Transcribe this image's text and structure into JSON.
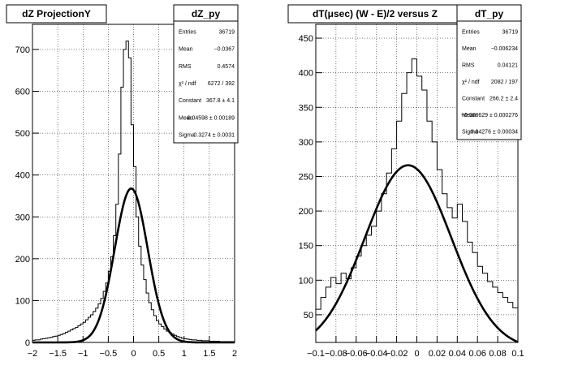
{
  "chart_data": [
    {
      "type": "histogram-with-fit",
      "title": "dZ ProjectionY",
      "xlim": [
        -2,
        2
      ],
      "ylim": [
        0,
        760
      ],
      "xticks": [
        -2,
        -1.5,
        -1,
        -0.5,
        0,
        0.5,
        1,
        1.5,
        2
      ],
      "xtick_labels": [
        "−2",
        "−1.5",
        "−1",
        "−0.5",
        "0",
        "0.5",
        "1",
        "1.5",
        "2"
      ],
      "yticks": [
        0,
        100,
        200,
        300,
        400,
        500,
        600,
        700
      ],
      "ytick_labels": [
        "0",
        "100",
        "200",
        "300",
        "400",
        "500",
        "600",
        "700"
      ],
      "grid": true,
      "histogram": {
        "bins": [
          -2.0,
          -1.95,
          -1.9,
          -1.85,
          -1.8,
          -1.75,
          -1.7,
          -1.65,
          -1.6,
          -1.55,
          -1.5,
          -1.45,
          -1.4,
          -1.35,
          -1.3,
          -1.25,
          -1.2,
          -1.15,
          -1.1,
          -1.05,
          -1.0,
          -0.95,
          -0.9,
          -0.85,
          -0.8,
          -0.75,
          -0.7,
          -0.65,
          -0.6,
          -0.55,
          -0.5,
          -0.45,
          -0.4,
          -0.35,
          -0.3,
          -0.25,
          -0.2,
          -0.15,
          -0.1,
          -0.05,
          0.0,
          0.05,
          0.1,
          0.15,
          0.2,
          0.25,
          0.3,
          0.35,
          0.4,
          0.45,
          0.5,
          0.55,
          0.6,
          0.65,
          0.7,
          0.75,
          0.8,
          0.85,
          0.9,
          0.95,
          1.0,
          1.05,
          1.1,
          1.15,
          1.2,
          1.25,
          1.3,
          1.35,
          1.4,
          1.45,
          1.5,
          1.55,
          1.6,
          1.65,
          1.7,
          1.75,
          1.8,
          1.85,
          1.9,
          1.95,
          2.0
        ],
        "values": [
          5,
          6,
          6,
          8,
          9,
          10,
          11,
          12,
          14,
          15,
          17,
          19,
          21,
          24,
          27,
          30,
          33,
          36,
          40,
          44,
          48,
          54,
          60,
          66,
          74,
          82,
          92,
          105,
          122,
          142,
          170,
          205,
          255,
          330,
          450,
          610,
          700,
          720,
          680,
          520,
          420,
          300,
          230,
          185,
          150,
          118,
          95,
          78,
          64,
          52,
          44,
          38,
          32,
          27,
          23,
          20,
          17,
          14,
          12,
          10,
          9,
          8,
          7,
          6,
          6,
          5,
          5,
          4,
          4,
          4,
          3,
          3,
          3,
          3,
          2,
          2,
          2,
          2,
          2,
          2
        ]
      },
      "fit": {
        "function": "gaus",
        "constant": 367.8,
        "mean": -0.04598,
        "sigma": 0.3274
      },
      "stats": {
        "title": "dZ_py",
        "rows": [
          {
            "label": "Entries",
            "value": "36719"
          },
          {
            "label": "Mean",
            "value": "−0.0367"
          },
          {
            "label": "RMS",
            "value": "0.4574"
          },
          {
            "label": "χ² / ndf",
            "value": "6272 / 392"
          },
          {
            "label": "Constant",
            "value": "367.8 ± 4.1"
          },
          {
            "label": "Mean",
            "value": "−0.04598 ± 0.00189"
          },
          {
            "label": "Sigma",
            "value": "0.3274 ± 0.0031"
          }
        ]
      }
    },
    {
      "type": "histogram-with-fit",
      "title": "dT(μsec) (W - E)/2 versus Z",
      "xlim": [
        -0.1,
        0.1
      ],
      "ylim": [
        10,
        470
      ],
      "xticks": [
        -0.1,
        -0.08,
        -0.06,
        -0.04,
        -0.02,
        0,
        0.02,
        0.04,
        0.06,
        0.08,
        0.1
      ],
      "xtick_labels": [
        "−0.1",
        "−0.08",
        "−0.06",
        "−0.04",
        "−0.02",
        "0",
        "0.02",
        "0.04",
        "0.06",
        "0.08",
        "0.1"
      ],
      "yticks": [
        50,
        100,
        150,
        200,
        250,
        300,
        350,
        400,
        450
      ],
      "ytick_labels": [
        "50",
        "100",
        "150",
        "200",
        "250",
        "300",
        "350",
        "400",
        "450"
      ],
      "grid": true,
      "histogram": {
        "bins": [
          -0.1,
          -0.095,
          -0.09,
          -0.085,
          -0.08,
          -0.075,
          -0.07,
          -0.065,
          -0.06,
          -0.055,
          -0.05,
          -0.045,
          -0.04,
          -0.035,
          -0.03,
          -0.025,
          -0.02,
          -0.015,
          -0.01,
          -0.005,
          0.0,
          0.005,
          0.01,
          0.015,
          0.02,
          0.025,
          0.03,
          0.035,
          0.04,
          0.045,
          0.05,
          0.055,
          0.06,
          0.065,
          0.07,
          0.075,
          0.08,
          0.085,
          0.09,
          0.095,
          0.1
        ],
        "values": [
          58,
          75,
          90,
          104,
          95,
          110,
          102,
          118,
          135,
          150,
          165,
          178,
          200,
          225,
          255,
          290,
          330,
          370,
          400,
          420,
          395,
          375,
          330,
          300,
          260,
          225,
          205,
          190,
          210,
          185,
          155,
          140,
          120,
          110,
          98,
          90,
          82,
          75,
          68,
          60
        ]
      },
      "fit": {
        "function": "gaus",
        "constant": 266.2,
        "mean": -0.008629,
        "sigma": 0.04276
      },
      "stats": {
        "title": "dT_py",
        "rows": [
          {
            "label": "Entries",
            "value": "36719"
          },
          {
            "label": "Mean",
            "value": "−0.006234"
          },
          {
            "label": "RMS",
            "value": "0.04121"
          },
          {
            "label": "χ² / ndf",
            "value": "2082 / 197"
          },
          {
            "label": "Constant",
            "value": "266.2 ± 2.4"
          },
          {
            "label": "Mean",
            "value": "−0.008629 ± 0.000276"
          },
          {
            "label": "Sigma",
            "value": "0.04276 ± 0.00034"
          }
        ]
      }
    }
  ]
}
